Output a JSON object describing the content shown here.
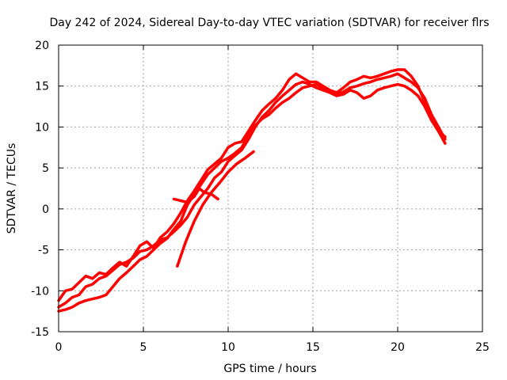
{
  "chart_data": {
    "type": "line",
    "title": "Day 242 of 2024, Sidereal Day-to-day VTEC variation (SDTVAR) for receiver flrs",
    "xlabel": "GPS time / hours",
    "ylabel": "SDTVAR / TECUs",
    "xlim": [
      0,
      25
    ],
    "ylim": [
      -15,
      20
    ],
    "xticks": [
      0,
      5,
      10,
      15,
      20,
      25
    ],
    "yticks": [
      -15,
      -10,
      -5,
      0,
      5,
      10,
      15,
      20
    ],
    "grid": true,
    "legend": "none",
    "series": [
      {
        "name": "track A",
        "color": "#ff0000",
        "x": [
          0.0,
          0.4,
          0.8,
          1.2,
          1.6,
          2.0,
          2.4,
          2.8,
          3.2,
          3.6,
          4.0,
          4.4,
          4.8,
          5.2,
          5.6,
          6.0,
          6.4,
          6.8,
          7.2,
          7.6,
          8.0,
          8.4,
          8.8,
          9.2,
          9.6,
          10.0,
          10.4,
          10.8,
          11.2,
          11.6,
          12.0,
          12.4,
          12.8,
          13.2,
          13.6,
          14.0,
          14.4,
          14.8,
          15.2,
          15.6,
          16.0,
          16.4,
          16.8,
          17.2,
          17.6,
          18.0,
          18.4,
          18.8,
          19.2,
          19.6,
          20.0,
          20.4,
          20.8,
          21.2,
          21.6,
          22.0,
          22.4,
          22.8
        ],
        "y": [
          -12.0,
          -11.5,
          -10.8,
          -10.5,
          -9.5,
          -9.2,
          -8.5,
          -8.2,
          -7.5,
          -6.8,
          -6.5,
          -6.0,
          -5.2,
          -5.0,
          -4.5,
          -3.8,
          -3.5,
          -2.8,
          -2.0,
          -1.0,
          0.5,
          1.5,
          2.5,
          3.8,
          4.5,
          5.8,
          6.5,
          7.2,
          8.5,
          10.0,
          11.2,
          12.0,
          13.0,
          13.8,
          14.5,
          15.2,
          15.5,
          15.2,
          14.8,
          14.5,
          14.2,
          14.0,
          14.3,
          14.8,
          15.0,
          15.3,
          15.5,
          15.8,
          16.0,
          16.2,
          16.5,
          16.0,
          15.5,
          14.8,
          13.5,
          11.5,
          10.0,
          8.5
        ]
      },
      {
        "name": "track B",
        "color": "#ff0000",
        "x": [
          0.0,
          0.4,
          0.8,
          1.2,
          1.6,
          2.0,
          2.4,
          2.8,
          3.2,
          3.6,
          4.0,
          4.4,
          4.8,
          5.2,
          5.6,
          6.0,
          6.4,
          6.8,
          7.2,
          7.6,
          8.0,
          8.4,
          8.8,
          9.2,
          9.6,
          10.0,
          10.4,
          10.8,
          11.2,
          11.6,
          12.0,
          12.4,
          12.8,
          13.2,
          13.6,
          14.0,
          14.4,
          14.8,
          15.2,
          15.6,
          16.0,
          16.4,
          16.8,
          17.2,
          17.6,
          18.0,
          18.4,
          18.8,
          19.2,
          19.6,
          20.0,
          20.4,
          20.8,
          21.2,
          21.6,
          22.0,
          22.4,
          22.8
        ],
        "y": [
          -12.5,
          -12.3,
          -12.0,
          -11.5,
          -11.2,
          -11.0,
          -10.8,
          -10.5,
          -9.5,
          -8.5,
          -7.8,
          -7.0,
          -6.2,
          -5.8,
          -5.0,
          -4.2,
          -3.6,
          -2.5,
          -1.5,
          0.5,
          1.8,
          3.0,
          4.2,
          5.0,
          5.8,
          6.2,
          6.8,
          7.5,
          9.0,
          10.2,
          11.0,
          11.5,
          12.3,
          13.0,
          13.5,
          14.2,
          14.8,
          15.0,
          15.2,
          14.8,
          14.2,
          13.8,
          14.0,
          14.5,
          14.2,
          13.5,
          13.8,
          14.5,
          14.8,
          15.0,
          15.2,
          15.0,
          14.5,
          13.8,
          12.5,
          10.8,
          9.5,
          8.0
        ]
      },
      {
        "name": "track C",
        "color": "#ff0000",
        "x": [
          0.0,
          0.4,
          0.8,
          1.2,
          1.6,
          2.0,
          2.4,
          2.8,
          3.2,
          3.6,
          4.0,
          4.4,
          4.8,
          5.2,
          5.6,
          6.0,
          6.4,
          6.8,
          7.2,
          7.6,
          8.0,
          8.4,
          8.8,
          9.2,
          9.6,
          10.0,
          10.4,
          10.8,
          11.2,
          11.6,
          12.0,
          12.4,
          12.8,
          13.2,
          13.6,
          14.0,
          14.4,
          14.8,
          15.2,
          15.6,
          16.0,
          16.4,
          16.8,
          17.2,
          17.6,
          18.0,
          18.4,
          18.8,
          19.2,
          19.6,
          20.0,
          20.4,
          20.8,
          21.2,
          21.6,
          22.0,
          22.4,
          22.8
        ],
        "y": [
          -11.2,
          -10.0,
          -9.8,
          -9.0,
          -8.2,
          -8.5,
          -7.8,
          -8.0,
          -7.2,
          -6.5,
          -7.0,
          -5.8,
          -4.5,
          -4.0,
          -4.8,
          -3.5,
          -2.8,
          -1.8,
          -0.5,
          1.0,
          2.2,
          3.5,
          4.8,
          5.5,
          6.2,
          7.5,
          8.0,
          8.2,
          9.5,
          10.8,
          12.0,
          12.8,
          13.5,
          14.5,
          15.8,
          16.5,
          16.0,
          15.5,
          15.5,
          15.0,
          14.5,
          14.2,
          14.8,
          15.5,
          15.8,
          16.2,
          16.0,
          16.2,
          16.5,
          16.8,
          17.0,
          17.0,
          16.2,
          15.0,
          13.0,
          11.0,
          9.5,
          8.8
        ]
      },
      {
        "name": "track D",
        "color": "#ff0000",
        "x": [
          7.0,
          7.5,
          8.0,
          8.5,
          9.0,
          9.5,
          10.0,
          10.5,
          11.0,
          11.5
        ],
        "y": [
          -7.0,
          -4.0,
          -1.5,
          0.5,
          2.0,
          3.2,
          4.5,
          5.5,
          6.2,
          7.0
        ]
      },
      {
        "name": "track E",
        "color": "#ff0000",
        "x": [
          6.8,
          7.2,
          7.6,
          8.0,
          8.3,
          8.6,
          9.0,
          9.4
        ],
        "y": [
          1.2,
          1.0,
          0.8,
          1.5,
          2.5,
          2.0,
          1.8,
          1.2
        ]
      }
    ]
  }
}
